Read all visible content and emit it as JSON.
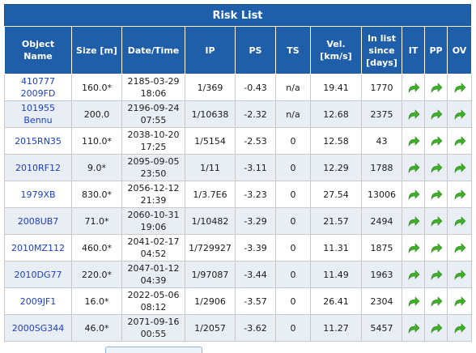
{
  "title": "Risk List",
  "headers": {
    "name_1": "Object",
    "name_2": "Name",
    "size": "Size [m]",
    "date": "Date/Time",
    "ip": "IP",
    "ps": "PS",
    "ts": "TS",
    "vel_1": "Vel.",
    "vel_2": "[km/s]",
    "since_1": "In list",
    "since_2": "since",
    "since_3": "[days]",
    "it": "IT",
    "pp": "PP",
    "ov": "OV"
  },
  "icons": {
    "action": "share-arrow-icon",
    "color": "#3fae2a"
  },
  "rows": [
    {
      "name_1": "410777",
      "name_2": "2009FD",
      "size": "160.0*",
      "date": "2185-03-29",
      "time": "18:06",
      "ip": "1/369",
      "ps": "-0.43",
      "ts": "n/a",
      "vel": "19.41",
      "since": "1770"
    },
    {
      "name_1": "101955 Bennu",
      "name_2": "",
      "size": "200.0",
      "date": "2196-09-24",
      "time": "07:55",
      "ip": "1/10638",
      "ps": "-2.32",
      "ts": "n/a",
      "vel": "12.68",
      "since": "2375"
    },
    {
      "name_1": "2015RN35",
      "name_2": "",
      "size": "110.0*",
      "date": "2038-10-20",
      "time": "17:25",
      "ip": "1/5154",
      "ps": "-2.53",
      "ts": "0",
      "vel": "12.58",
      "since": "43"
    },
    {
      "name_1": "2010RF12",
      "name_2": "",
      "size": "9.0*",
      "date": "2095-09-05",
      "time": "23:50",
      "ip": "1/11",
      "ps": "-3.11",
      "ts": "0",
      "vel": "12.29",
      "since": "1788"
    },
    {
      "name_1": "1979XB",
      "name_2": "",
      "size": "830.0*",
      "date": "2056-12-12",
      "time": "21:39",
      "ip": "1/3.7E6",
      "ps": "-3.23",
      "ts": "0",
      "vel": "27.54",
      "since": "13006"
    },
    {
      "name_1": "2008UB7",
      "name_2": "",
      "size": "71.0*",
      "date": "2060-10-31",
      "time": "19:06",
      "ip": "1/10482",
      "ps": "-3.29",
      "ts": "0",
      "vel": "21.57",
      "since": "2494"
    },
    {
      "name_1": "2010MZ112",
      "name_2": "",
      "size": "460.0*",
      "date": "2041-02-17",
      "time": "04:52",
      "ip": "1/729927",
      "ps": "-3.39",
      "ts": "0",
      "vel": "11.31",
      "since": "1875"
    },
    {
      "name_1": "2010DG77",
      "name_2": "",
      "size": "220.0*",
      "date": "2047-01-12",
      "time": "04:39",
      "ip": "1/97087",
      "ps": "-3.44",
      "ts": "0",
      "vel": "11.49",
      "since": "1963"
    },
    {
      "name_1": "2009JF1",
      "name_2": "",
      "size": "16.0*",
      "date": "2022-05-06",
      "time": "08:12",
      "ip": "1/2906",
      "ps": "-3.57",
      "ts": "0",
      "vel": "26.41",
      "since": "2304"
    },
    {
      "name_1": "2000SG344",
      "name_2": "",
      "size": "46.0*",
      "date": "2071-09-16",
      "time": "00:55",
      "ip": "1/2057",
      "ps": "-3.62",
      "ts": "0",
      "vel": "11.27",
      "since": "5457"
    }
  ]
}
